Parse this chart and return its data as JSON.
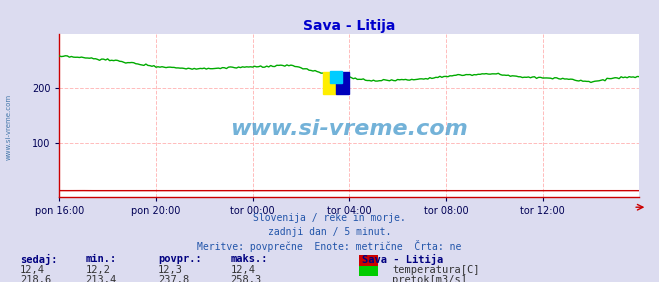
{
  "title": "Sava - Litija",
  "title_color": "#0000cc",
  "bg_color": "#dcdcf0",
  "plot_bg_color": "#ffffff",
  "grid_color_v": "#ffbbbb",
  "grid_color_h": "#ffbbbb",
  "axis_color": "#cc0000",
  "tick_label_color": "#000055",
  "text_color": "#2255aa",
  "watermark": "www.si-vreme.com",
  "watermark_color": "#4499cc",
  "subtitle_lines": [
    "Slovenija / reke in morje.",
    "zadnji dan / 5 minut.",
    "Meritve: povprečne  Enote: metrične  Črta: ne"
  ],
  "x_tick_labels": [
    "pon 16:00",
    "pon 20:00",
    "tor 00:00",
    "tor 04:00",
    "tor 08:00",
    "tor 12:00"
  ],
  "x_tick_positions": [
    0,
    48,
    96,
    144,
    192,
    240
  ],
  "x_total": 288,
  "y_ticks": [
    100,
    200
  ],
  "ylim": [
    0,
    300
  ],
  "xlim": [
    0,
    288
  ],
  "legend_title": "Sava - Litija",
  "legend_items": [
    {
      "label": "temperatura[C]",
      "color": "#cc0000"
    },
    {
      "label": "pretok[m3/s]",
      "color": "#00cc00"
    }
  ],
  "table_headers": [
    "sedaj:",
    "min.:",
    "povpr.:",
    "maks.:"
  ],
  "table_rows": [
    [
      "12,4",
      "12,2",
      "12,3",
      "12,4"
    ],
    [
      "218,6",
      "213,4",
      "237,8",
      "258,3"
    ]
  ],
  "temp_color": "#cc0000",
  "flow_color": "#00aa00",
  "sidebar_text": "www.si-vreme.com",
  "sidebar_color": "#4477aa"
}
